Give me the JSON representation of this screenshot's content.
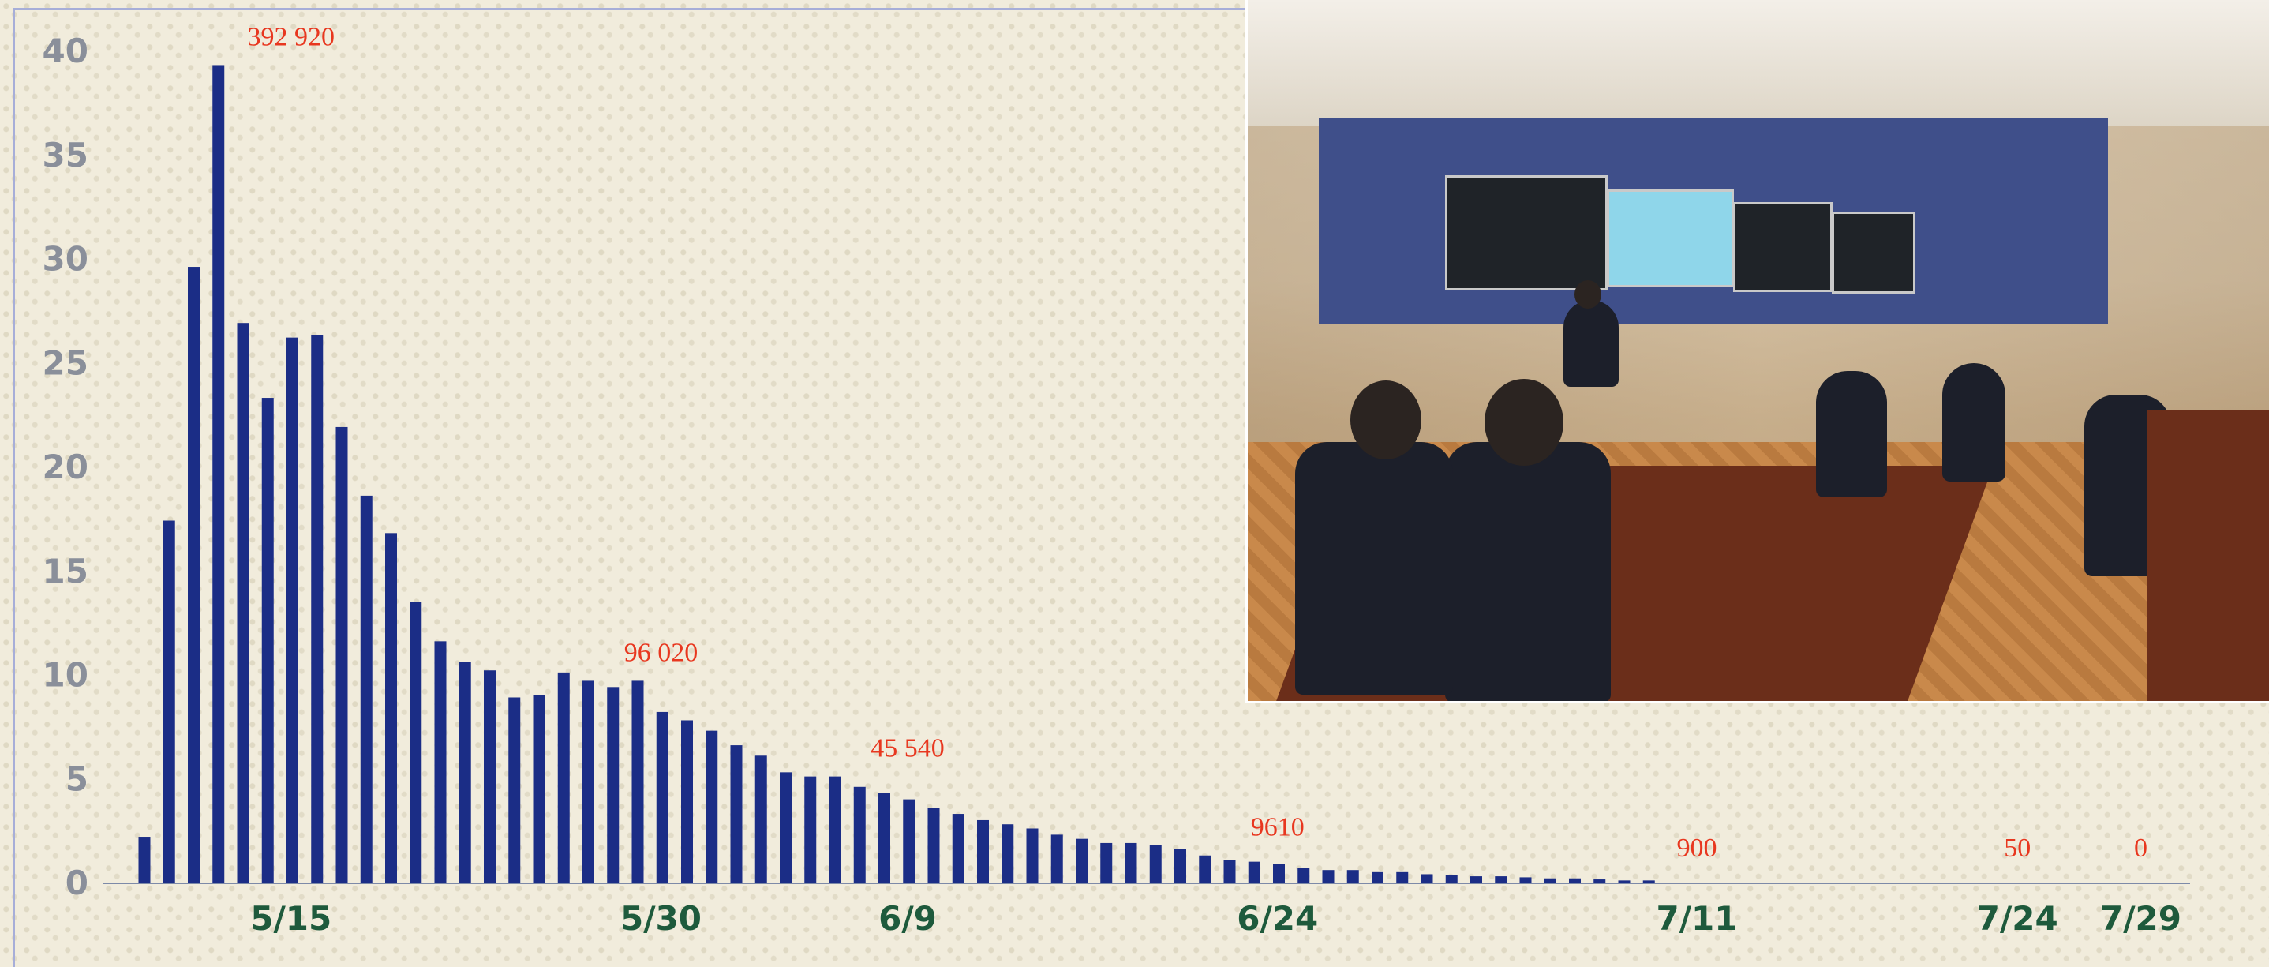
{
  "chart_data": {
    "type": "bar",
    "title": "",
    "xlabel": "",
    "ylabel": "",
    "ylim": [
      0,
      40
    ],
    "yticks": [
      "0",
      "5",
      "10",
      "15",
      "20",
      "25",
      "30",
      "35",
      "40"
    ],
    "grid": false,
    "bar_color": "#1b2d86",
    "x_ticks": [
      {
        "label": "5/15",
        "index": 3
      },
      {
        "label": "5/30",
        "index": 18
      },
      {
        "label": "6/9",
        "index": 28
      },
      {
        "label": "6/24",
        "index": 43
      },
      {
        "label": "7/11",
        "index": 60
      },
      {
        "label": "7/24",
        "index": 73
      },
      {
        "label": "7/29",
        "index": 78
      }
    ],
    "annotations": [
      {
        "label": "392 920",
        "index": 3
      },
      {
        "label": "96 020",
        "index": 18
      },
      {
        "label": "45 540",
        "index": 28
      },
      {
        "label": "9610",
        "index": 43
      },
      {
        "label": "900",
        "index": 60
      },
      {
        "label": "50",
        "index": 73
      },
      {
        "label": "0",
        "index": 78
      }
    ],
    "values": [
      2.2,
      17.4,
      29.6,
      39.3,
      26.9,
      23.3,
      26.2,
      26.3,
      21.9,
      18.6,
      16.8,
      13.5,
      11.6,
      10.6,
      10.2,
      8.9,
      9.0,
      10.1,
      9.7,
      9.4,
      9.7,
      8.2,
      7.8,
      7.3,
      6.6,
      6.1,
      5.3,
      5.1,
      5.1,
      4.6,
      4.3,
      4.0,
      3.6,
      3.3,
      3.0,
      2.8,
      2.6,
      2.3,
      2.1,
      1.9,
      1.9,
      1.8,
      1.6,
      1.3,
      1.1,
      1.0,
      0.9,
      0.7,
      0.6,
      0.6,
      0.5,
      0.5,
      0.4,
      0.35,
      0.3,
      0.3,
      0.25,
      0.2,
      0.2,
      0.15,
      0.1,
      0.1
    ]
  },
  "photo": {
    "description_icon": "meeting-room-photo-icon"
  }
}
